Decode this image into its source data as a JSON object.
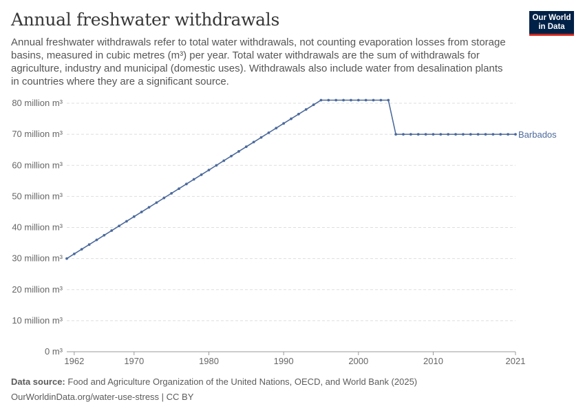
{
  "title": "Annual freshwater withdrawals",
  "subtitle": "Annual freshwater withdrawals refer to total water withdrawals, not counting evaporation losses from storage basins, measured in cubic metres (m³) per year. Total water withdrawals are the sum of withdrawals for agriculture, industry and municipal (domestic uses). Withdrawals also include water from desalination plants in countries where they are a significant source.",
  "logo": {
    "line1": "Our World",
    "line2": "in Data"
  },
  "footer": {
    "source_label": "Data source:",
    "source_text": "Food and Agriculture Organization of the United Nations, OECD, and World Bank (2025)",
    "url_text": "OurWorldinData.org/water-use-stress | CC BY"
  },
  "chart_data": {
    "type": "line",
    "x_ticks": [
      1962,
      1970,
      1980,
      1990,
      2000,
      2010,
      2021
    ],
    "y_ticks": [
      0,
      10,
      20,
      30,
      40,
      50,
      60,
      70,
      80
    ],
    "y_tick_labels": [
      "0 m³",
      "10 million m³",
      "20 million m³",
      "30 million m³",
      "40 million m³",
      "50 million m³",
      "60 million m³",
      "70 million m³",
      "80 million m³"
    ],
    "xlim": [
      1961,
      2021
    ],
    "ylim": [
      0,
      80
    ],
    "grid": "horizontal-dashed",
    "line_color": "#4c6a9c",
    "series": [
      {
        "name": "Barbados",
        "x": [
          1961,
          1962,
          1963,
          1964,
          1965,
          1966,
          1967,
          1968,
          1969,
          1970,
          1971,
          1972,
          1973,
          1974,
          1975,
          1976,
          1977,
          1978,
          1979,
          1980,
          1981,
          1982,
          1983,
          1984,
          1985,
          1986,
          1987,
          1988,
          1989,
          1990,
          1991,
          1992,
          1993,
          1994,
          1995,
          1996,
          1997,
          1998,
          1999,
          2000,
          2001,
          2002,
          2003,
          2004,
          2005,
          2006,
          2007,
          2008,
          2009,
          2010,
          2011,
          2012,
          2013,
          2014,
          2015,
          2016,
          2017,
          2018,
          2019,
          2020,
          2021
        ],
        "values": [
          30,
          31.5,
          33,
          34.5,
          36,
          37.5,
          39,
          40.5,
          42,
          43.5,
          45,
          46.5,
          48,
          49.5,
          51,
          52.5,
          54,
          55.5,
          57,
          58.5,
          60,
          61.5,
          63,
          64.5,
          66,
          67.5,
          69,
          70.5,
          72,
          73.5,
          75,
          76.5,
          78,
          79.5,
          81,
          81,
          81,
          81,
          81,
          81,
          81,
          81,
          81,
          81,
          70,
          70,
          70,
          70,
          70,
          70,
          70,
          70,
          70,
          70,
          70,
          70,
          70,
          70,
          70,
          70,
          70
        ]
      }
    ]
  }
}
